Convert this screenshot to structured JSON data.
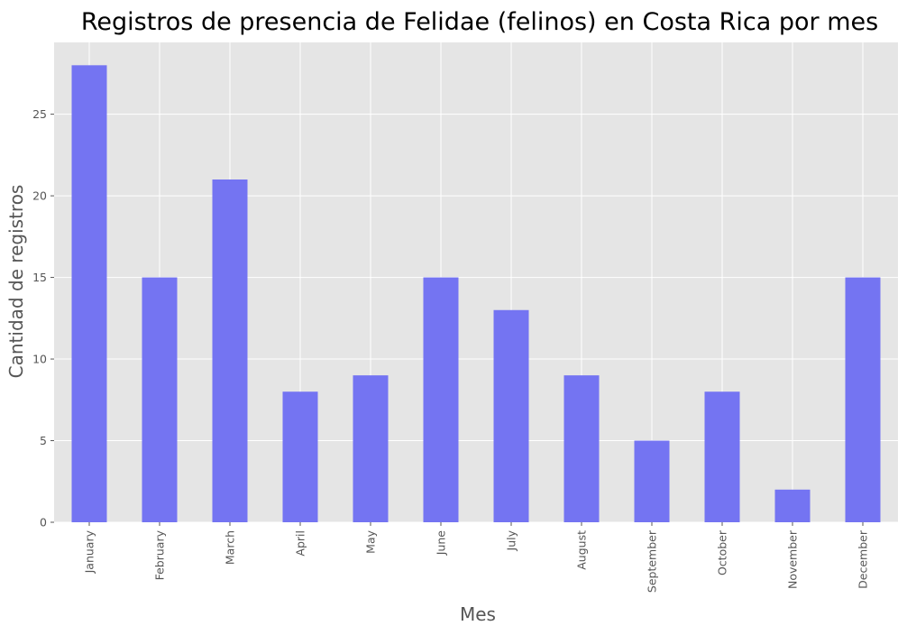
{
  "chart_data": {
    "type": "bar",
    "title": "Registros de presencia de Felidae (felinos) en Costa Rica por mes",
    "xlabel": "Mes",
    "ylabel": "Cantidad de registros",
    "categories": [
      "January",
      "February",
      "March",
      "April",
      "May",
      "June",
      "July",
      "August",
      "September",
      "October",
      "November",
      "December"
    ],
    "values": [
      28,
      15,
      21,
      8,
      9,
      15,
      13,
      9,
      5,
      8,
      2,
      15
    ],
    "ylim": [
      0,
      29.4
    ],
    "yticks": [
      0,
      5,
      10,
      15,
      20,
      25
    ],
    "grid": true,
    "legend": "none",
    "colors": {
      "bar": "#7474f2",
      "plot_background": "#e5e5e5",
      "grid": "#ffffff",
      "text": "#555555",
      "title": "#000000"
    }
  }
}
